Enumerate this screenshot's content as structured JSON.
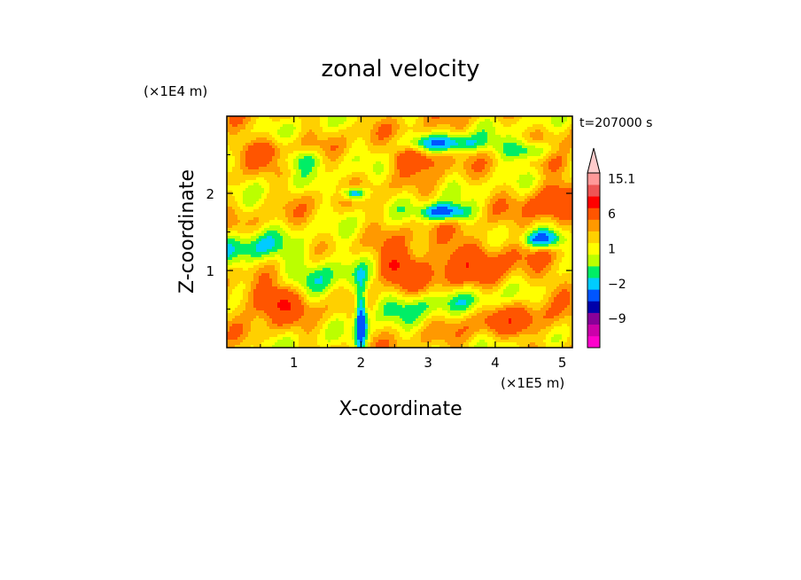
{
  "chart_data": {
    "type": "heatmap",
    "title": "zonal velocity",
    "xlabel": "X-coordinate",
    "ylabel": "Z-coordinate",
    "x_unit": "(×1E5 m)",
    "y_unit": "(×1E4 m)",
    "time_label": "t=207000 s",
    "xlim": [
      0,
      5.15
    ],
    "ylim": [
      0,
      3.0
    ],
    "x_ticks": [
      {
        "value": 1,
        "label": "1"
      },
      {
        "value": 2,
        "label": "2"
      },
      {
        "value": 3,
        "label": "3"
      },
      {
        "value": 4,
        "label": "4"
      },
      {
        "value": 5,
        "label": "5"
      }
    ],
    "y_ticks": [
      {
        "value": 1,
        "label": "1"
      },
      {
        "value": 2,
        "label": "2"
      }
    ],
    "colorbar": {
      "levels": [
        -15,
        -12,
        -9,
        -6,
        -3.5,
        -2,
        -1,
        0,
        1,
        2,
        3,
        6,
        9,
        12,
        15.1
      ],
      "colors": [
        "#ff00cc",
        "#cc00aa",
        "#880099",
        "#0000aa",
        "#0055ff",
        "#00ccff",
        "#00ee66",
        "#bbff00",
        "#ffff00",
        "#ffd000",
        "#ff9900",
        "#ff5500",
        "#ff0000",
        "#ee5555",
        "#ff9999",
        "#ffcccc"
      ],
      "labels": [
        {
          "value": 15.1,
          "label": "15.1"
        },
        {
          "value": 6,
          "label": "6"
        },
        {
          "value": 1,
          "label": "1"
        },
        {
          "value": -2,
          "label": "−2"
        },
        {
          "value": -9,
          "label": "−9"
        }
      ]
    },
    "features": [
      {
        "x": 0.55,
        "z": 2.55,
        "u": 2.5,
        "sx": 0.35,
        "sz": 0.12
      },
      {
        "x": 1.1,
        "z": 2.45,
        "u": -3.0,
        "sx": 0.25,
        "sz": 0.1
      },
      {
        "x": 1.9,
        "z": 2.0,
        "u": -6.0,
        "sx": 0.12,
        "sz": 0.06
      },
      {
        "x": 2.85,
        "z": 2.45,
        "u": 4.0,
        "sx": 0.25,
        "sz": 0.1
      },
      {
        "x": 3.3,
        "z": 2.65,
        "u": -4.0,
        "sx": 0.4,
        "sz": 0.08
      },
      {
        "x": 3.25,
        "z": 1.75,
        "u": -6.5,
        "sx": 0.25,
        "sz": 0.08
      },
      {
        "x": 4.6,
        "z": 2.55,
        "u": -6.0,
        "sx": 0.3,
        "sz": 0.1
      },
      {
        "x": 4.85,
        "z": 2.5,
        "u": 4.0,
        "sx": 0.25,
        "sz": 0.15
      },
      {
        "x": 4.9,
        "z": 1.8,
        "u": 4.0,
        "sx": 0.3,
        "sz": 0.15
      },
      {
        "x": 4.7,
        "z": 1.4,
        "u": -6.0,
        "sx": 0.2,
        "sz": 0.08
      },
      {
        "x": 0.3,
        "z": 1.3,
        "u": -3.0,
        "sx": 0.4,
        "sz": 0.15
      },
      {
        "x": 0.7,
        "z": 0.6,
        "u": 5.0,
        "sx": 0.3,
        "sz": 0.15
      },
      {
        "x": 1.5,
        "z": 1.0,
        "u": -2.5,
        "sx": 0.5,
        "sz": 0.2
      },
      {
        "x": 2.0,
        "z": 0.35,
        "u": -7.0,
        "sx": 0.06,
        "sz": 0.3
      },
      {
        "x": 2.5,
        "z": 1.05,
        "u": 4.5,
        "sx": 0.2,
        "sz": 0.15
      },
      {
        "x": 2.7,
        "z": 0.55,
        "u": -2.0,
        "sx": 0.4,
        "sz": 0.15
      },
      {
        "x": 3.8,
        "z": 0.6,
        "u": -2.0,
        "sx": 0.6,
        "sz": 0.15
      },
      {
        "x": 3.5,
        "z": 1.2,
        "u": 2.0,
        "sx": 0.5,
        "sz": 0.2
      },
      {
        "x": 4.3,
        "z": 0.35,
        "u": 3.0,
        "sx": 0.5,
        "sz": 0.15
      },
      {
        "x": 3.6,
        "z": 0.95,
        "u": 1.5,
        "sx": 1.0,
        "sz": 0.25
      }
    ]
  }
}
